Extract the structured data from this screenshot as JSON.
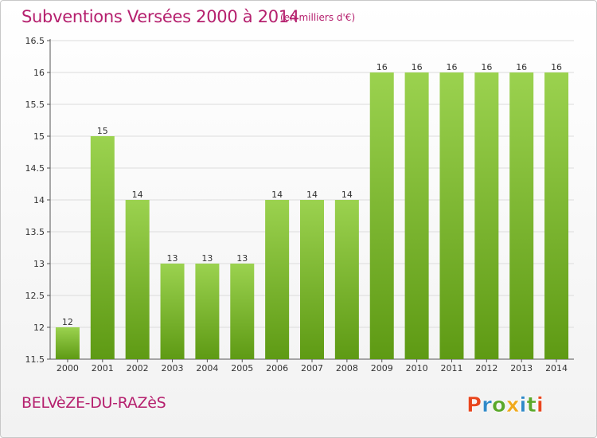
{
  "header": {
    "title": "Subventions Versées 2000 à 2014",
    "subtitle": "(en milliers d'€)"
  },
  "footer": {
    "location": "BELVèZE-DU-RAZèS",
    "logo_text": "Proxiti"
  },
  "colors": {
    "title": "#b5206e",
    "bar_top": "#9bd24f",
    "bar_bottom": "#5e9a14",
    "grid": "#dcdcdc",
    "logo_letters": [
      "#e8461e",
      "#2f89c8",
      "#5aa82a",
      "#f0a91c",
      "#2f89c8",
      "#5aa82a",
      "#e8461e"
    ]
  },
  "chart_data": {
    "type": "bar",
    "categories": [
      "2000",
      "2001",
      "2002",
      "2003",
      "2004",
      "2005",
      "2006",
      "2007",
      "2008",
      "2009",
      "2010",
      "2011",
      "2012",
      "2013",
      "2014"
    ],
    "values": [
      12,
      15,
      14,
      13,
      13,
      13,
      14,
      14,
      14,
      16,
      16,
      16,
      16,
      16,
      16
    ],
    "data_labels": [
      "12",
      "15",
      "14",
      "13",
      "13",
      "13",
      "14",
      "14",
      "14",
      "16",
      "16",
      "16",
      "16",
      "16",
      "16"
    ],
    "title": "Subventions Versées 2000 à 2014",
    "xlabel": "",
    "ylabel": "",
    "ylim": [
      11.5,
      16.5
    ],
    "yticks": [
      11.5,
      12,
      12.5,
      13,
      13.5,
      14,
      14.5,
      15,
      15.5,
      16,
      16.5
    ],
    "ytick_labels": [
      "11.5",
      "12",
      "12.5",
      "13",
      "13.5",
      "14",
      "14.5",
      "15",
      "15.5",
      "16",
      "16.5"
    ],
    "grid": true,
    "legend": "none"
  }
}
